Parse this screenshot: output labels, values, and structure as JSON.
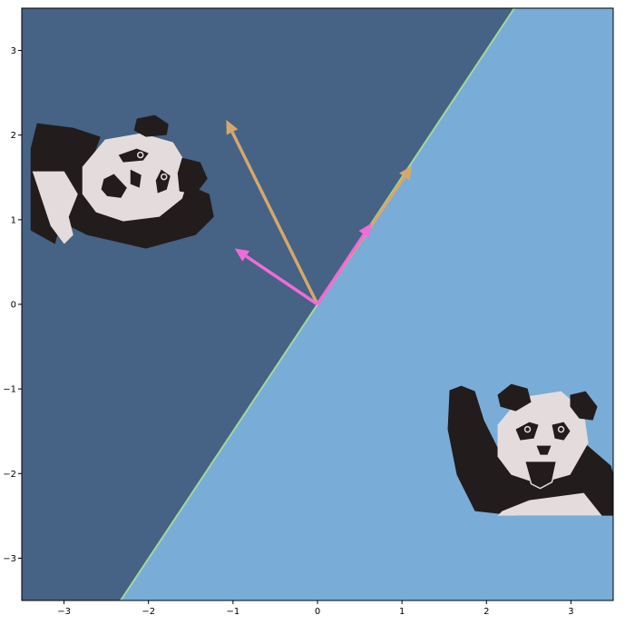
{
  "chart_data": {
    "type": "scatter",
    "title": "",
    "xlabel": "",
    "ylabel": "",
    "xlim": [
      -3.5,
      3.5
    ],
    "ylim": [
      -3.5,
      3.5
    ],
    "xticks": [
      -3,
      -2,
      -1,
      0,
      1,
      2,
      3
    ],
    "yticks": [
      -3,
      -2,
      -1,
      0,
      1,
      2,
      3
    ],
    "xtick_labels": [
      "−3",
      "−2",
      "−1",
      "0",
      "1",
      "2",
      "3"
    ],
    "ytick_labels": [
      "−3",
      "−2",
      "−1",
      "0",
      "1",
      "2",
      "3"
    ],
    "grid": false,
    "legend": "none",
    "regions": [
      {
        "side": "upper-left",
        "color": "#466284"
      },
      {
        "side": "lower-right",
        "color": "#79acd6"
      }
    ],
    "boundary_line": {
      "color": "#9fd8a0",
      "points": [
        [
          -2.33,
          -3.5
        ],
        [
          2.33,
          3.5
        ]
      ]
    },
    "vectors": [
      {
        "from": [
          0,
          0
        ],
        "to": [
          -1.08,
          2.18
        ],
        "color": "#d4a86a"
      },
      {
        "from": [
          0,
          0
        ],
        "to": [
          1.12,
          1.64
        ],
        "color": "#d4a86a"
      },
      {
        "from": [
          0,
          0
        ],
        "to": [
          -0.98,
          0.66
        ],
        "color": "#f06cd8"
      },
      {
        "from": [
          0,
          0
        ],
        "to": [
          0.64,
          0.96
        ],
        "color": "#f06cd8"
      }
    ],
    "images": [
      {
        "name": "panda-upper-left",
        "center": [
          -2.3,
          1.25
        ],
        "colors": {
          "fur": "#221c1c",
          "face": "#e4dcdc"
        }
      },
      {
        "name": "panda-lower-right",
        "center": [
          2.4,
          -1.8
        ],
        "colors": {
          "fur": "#221c1c",
          "face": "#e4dcdc"
        }
      }
    ]
  }
}
